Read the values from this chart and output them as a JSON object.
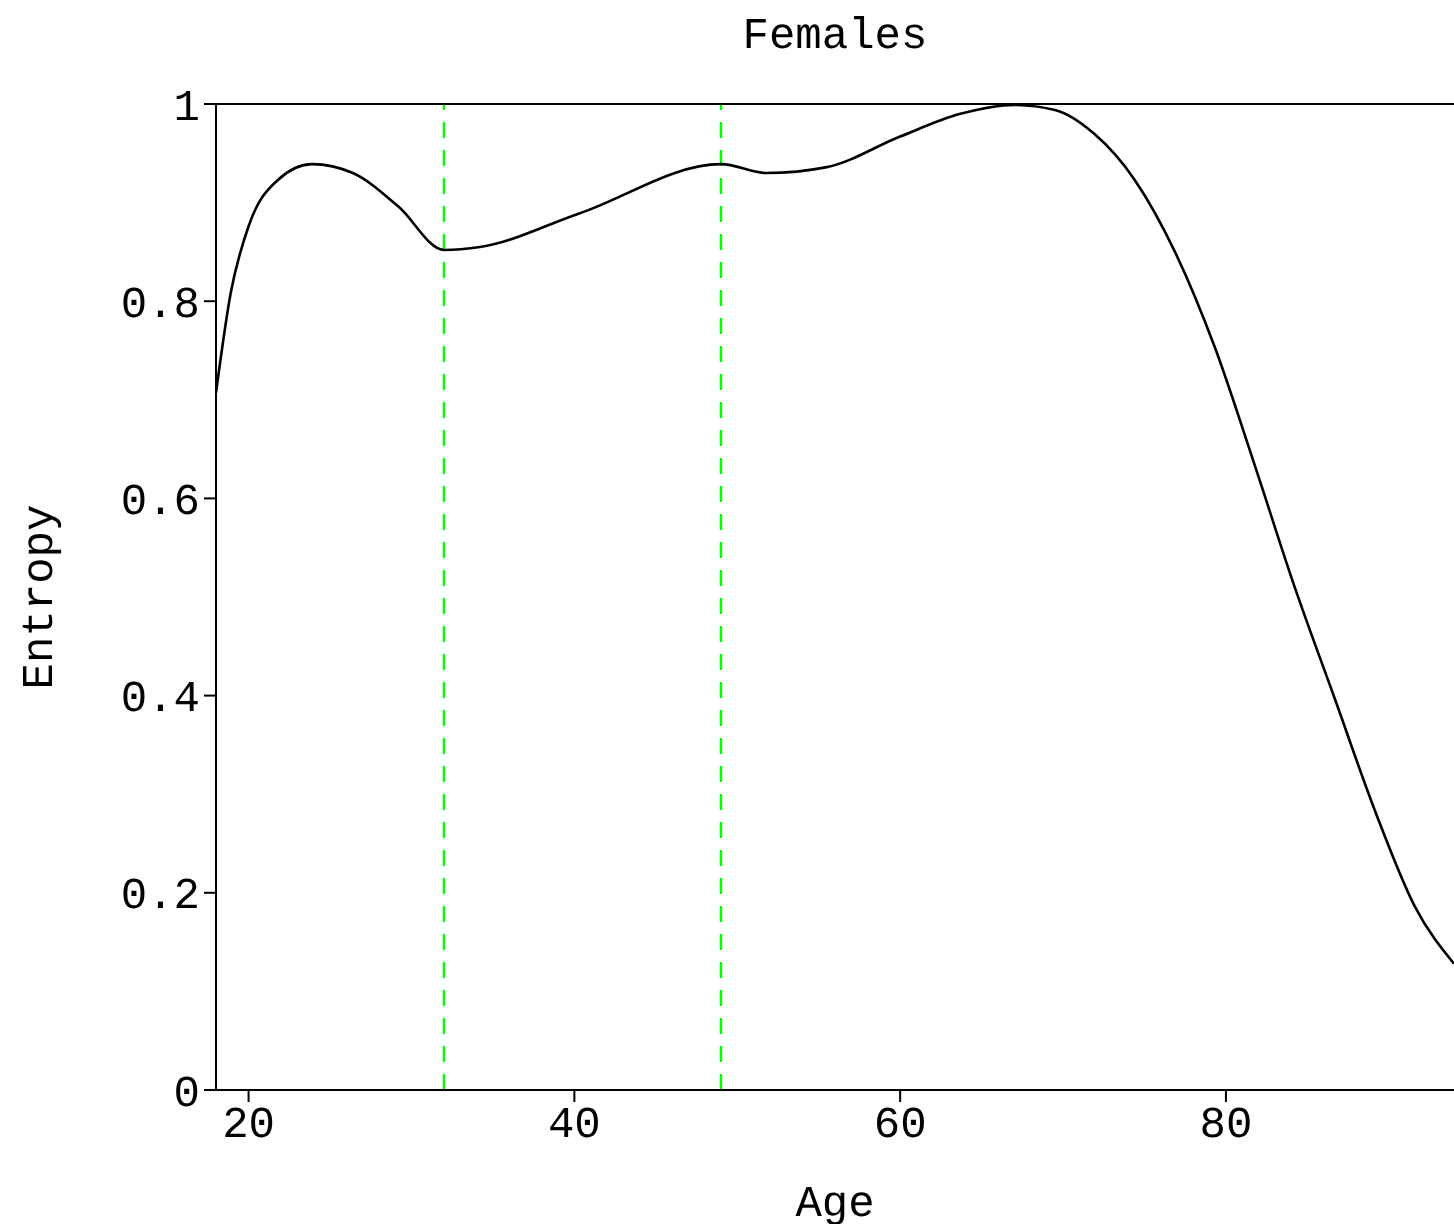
{
  "chart_data": {
    "type": "line",
    "title": "Females",
    "xlabel": "Age",
    "ylabel": "Entropy",
    "x": [
      18,
      18.9,
      20,
      21.8,
      23.9,
      26.4,
      29.2,
      32,
      34.2,
      40.3,
      49,
      51.8,
      55.5,
      60,
      63.7,
      67,
      69.5,
      71.9,
      74.4,
      76.9,
      79.3,
      81.8,
      84.2,
      86.7,
      89.2,
      91.6,
      94
    ],
    "series": [
      {
        "color": "#000000",
        "values": [
          0.707,
          0.808,
          0.876,
          0.923,
          0.939,
          0.93,
          0.896,
          0.852,
          0.855,
          0.889,
          0.939,
          0.93,
          0.936,
          0.967,
          0.99,
          0.999,
          0.994,
          0.97,
          0.923,
          0.849,
          0.754,
          0.632,
          0.511,
          0.396,
          0.281,
          0.186,
          0.128
        ]
      }
    ],
    "xlim": [
      18,
      94
    ],
    "xticks": [
      20,
      40,
      60,
      80
    ],
    "ylim": [
      0,
      1
    ],
    "yticks": [
      0,
      0.2,
      0.4,
      0.6,
      0.8,
      1
    ],
    "ref_lines": [
      {
        "axis": "x",
        "value": 32,
        "color": "#00ff00",
        "line_style": "dashed"
      },
      {
        "axis": "x",
        "value": 49,
        "color": "#00ff00",
        "line_style": "dashed"
      }
    ],
    "grid": false,
    "legend": false,
    "marker": "none",
    "line_style": "solid"
  }
}
